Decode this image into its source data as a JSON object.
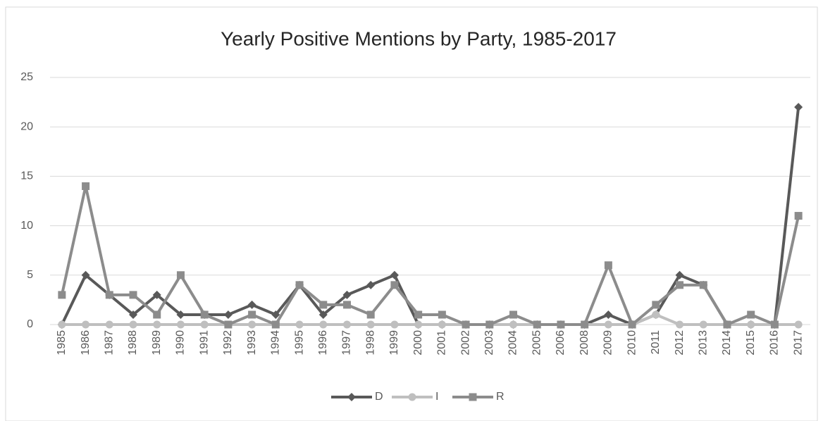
{
  "chart_data": {
    "type": "line",
    "title": "Yearly Positive Mentions by Party, 1985-2017",
    "categories": [
      "1985",
      "1986",
      "1987",
      "1988",
      "1989",
      "1990",
      "1991",
      "1992",
      "1993",
      "1994",
      "1995",
      "1996",
      "1997",
      "1998",
      "1999",
      "2000",
      "2001",
      "2002",
      "2003",
      "2004",
      "2005",
      "2006",
      "2008",
      "2009",
      "2010",
      "2011",
      "2012",
      "2013",
      "2014",
      "2015",
      "2016",
      "2017"
    ],
    "series": [
      {
        "name": "D",
        "color": "#595959",
        "marker": "diamond",
        "values": [
          0,
          5,
          3,
          1,
          3,
          1,
          1,
          1,
          2,
          1,
          4,
          1,
          3,
          4,
          5,
          0,
          0,
          0,
          0,
          0,
          0,
          0,
          0,
          1,
          0,
          1,
          5,
          4,
          0,
          0,
          0,
          22
        ]
      },
      {
        "name": "I",
        "color": "#bfbfbf",
        "marker": "circle",
        "values": [
          0,
          0,
          0,
          0,
          0,
          0,
          0,
          0,
          0,
          0,
          0,
          0,
          0,
          0,
          0,
          0,
          0,
          0,
          0,
          0,
          0,
          0,
          0,
          0,
          0,
          1,
          0,
          0,
          0,
          0,
          0,
          0
        ]
      },
      {
        "name": "R",
        "color": "#8c8c8c",
        "marker": "square",
        "values": [
          3,
          14,
          3,
          3,
          1,
          5,
          1,
          0,
          1,
          0,
          4,
          2,
          2,
          1,
          4,
          1,
          1,
          0,
          0,
          1,
          0,
          0,
          0,
          6,
          0,
          2,
          4,
          4,
          0,
          1,
          0,
          11
        ]
      }
    ],
    "ylim": [
      0,
      25
    ],
    "yticks": [
      0,
      5,
      10,
      15,
      20,
      25
    ],
    "grid": true,
    "legend": "bottom"
  }
}
